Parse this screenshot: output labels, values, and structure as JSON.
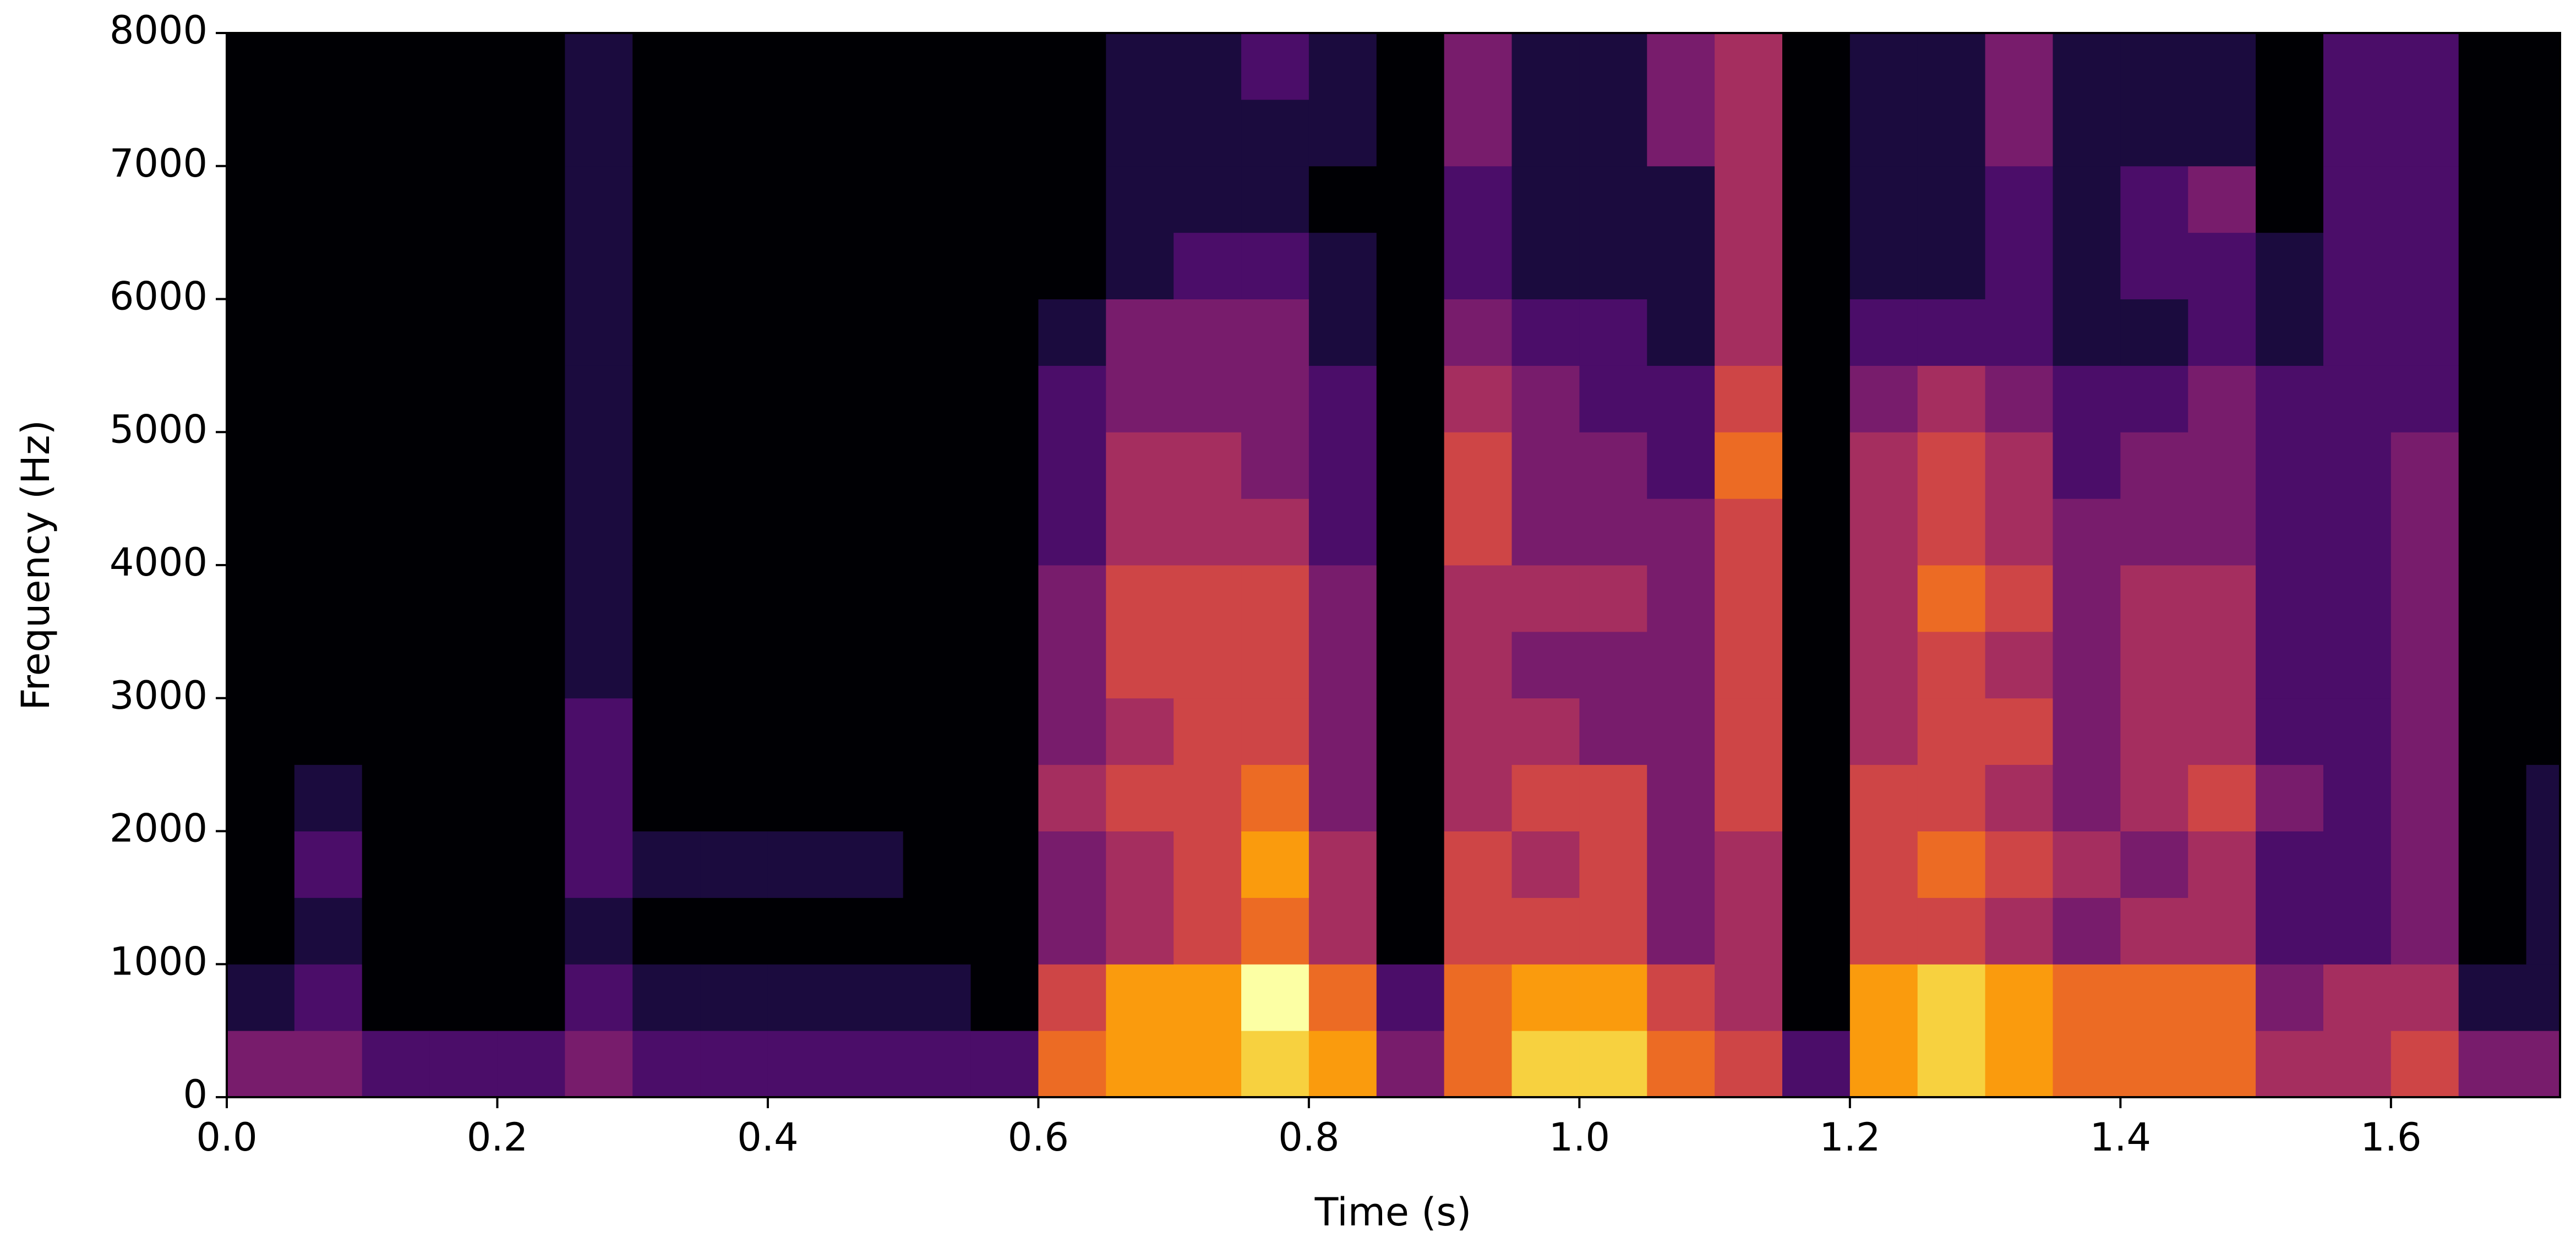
{
  "chart_data": {
    "type": "heatmap",
    "colormap": "inferno",
    "xlabel": "Time (s)",
    "ylabel": "Frequency (Hz)",
    "xlim": [
      0,
      1.725
    ],
    "ylim": [
      0,
      8000
    ],
    "xticks": [
      {
        "value": 0,
        "label": "0.0"
      },
      0.2,
      0.4,
      0.6,
      0.8,
      {
        "value": 1,
        "label": "1.0"
      },
      1.2,
      1.4,
      1.6
    ],
    "yticks": [
      0,
      1000,
      2000,
      3000,
      4000,
      5000,
      6000,
      7000,
      8000
    ],
    "x_bins": [
      0,
      0.05,
      0.1,
      0.15,
      0.2,
      0.25,
      0.3,
      0.35,
      0.4,
      0.45,
      0.5,
      0.55,
      0.6,
      0.65,
      0.7,
      0.75,
      0.8,
      0.85,
      0.9,
      0.95,
      1,
      1.05,
      1.1,
      1.15,
      1.2,
      1.25,
      1.3,
      1.35,
      1.4,
      1.45,
      1.5,
      1.55,
      1.6,
      1.65,
      1.7,
      1.75
    ],
    "y_bins": [
      0,
      500,
      1000,
      1500,
      2000,
      2500,
      3000,
      3500,
      4000,
      4500,
      5000,
      5500,
      6000,
      6500,
      7000,
      7500,
      8000
    ],
    "z": [
      [
        3,
        1,
        0,
        0,
        0,
        0,
        0,
        0,
        0,
        0,
        0,
        0,
        0,
        0,
        0,
        0
      ],
      [
        3,
        2,
        1,
        2,
        1,
        0,
        0,
        0,
        0,
        0,
        0,
        0,
        0,
        0,
        0,
        0
      ],
      [
        2,
        0,
        0,
        0,
        0,
        0,
        0,
        0,
        0,
        0,
        0,
        0,
        0,
        0,
        0,
        0
      ],
      [
        2,
        0,
        0,
        0,
        0,
        0,
        0,
        0,
        0,
        0,
        0,
        0,
        0,
        0,
        0,
        0
      ],
      [
        2,
        0,
        0,
        0,
        0,
        0,
        0,
        0,
        0,
        0,
        0,
        0,
        0,
        0,
        0,
        0
      ],
      [
        3,
        2,
        1,
        2,
        2,
        2,
        1,
        1,
        1,
        1,
        1,
        1,
        1,
        1,
        1,
        1
      ],
      [
        2,
        1,
        0,
        1,
        0,
        0,
        0,
        0,
        0,
        0,
        0,
        0,
        0,
        0,
        0,
        0
      ],
      [
        2,
        1,
        0,
        1,
        0,
        0,
        0,
        0,
        0,
        0,
        0,
        0,
        0,
        0,
        0,
        0
      ],
      [
        2,
        1,
        0,
        1,
        0,
        0,
        0,
        0,
        0,
        0,
        0,
        0,
        0,
        0,
        0,
        0
      ],
      [
        2,
        1,
        0,
        1,
        0,
        0,
        0,
        0,
        0,
        0,
        0,
        0,
        0,
        0,
        0,
        0
      ],
      [
        2,
        1,
        0,
        0,
        0,
        0,
        0,
        0,
        0,
        0,
        0,
        0,
        0,
        0,
        0,
        0
      ],
      [
        2,
        0,
        0,
        0,
        0,
        0,
        0,
        0,
        0,
        0,
        0,
        0,
        0,
        0,
        0,
        0
      ],
      [
        6,
        5,
        3,
        3,
        4,
        3,
        3,
        3,
        2,
        2,
        2,
        1,
        0,
        0,
        0,
        0
      ],
      [
        7,
        7,
        4,
        4,
        5,
        4,
        5,
        5,
        4,
        4,
        3,
        3,
        1,
        1,
        1,
        1
      ],
      [
        7,
        7,
        5,
        5,
        5,
        5,
        5,
        5,
        4,
        4,
        3,
        3,
        2,
        1,
        1,
        1
      ],
      [
        8,
        9,
        6,
        7,
        6,
        5,
        5,
        5,
        4,
        3,
        3,
        3,
        2,
        1,
        1,
        2
      ],
      [
        7,
        6,
        4,
        4,
        3,
        3,
        3,
        3,
        2,
        2,
        2,
        1,
        1,
        0,
        1,
        1
      ],
      [
        3,
        2,
        0,
        0,
        0,
        0,
        0,
        0,
        0,
        0,
        0,
        0,
        0,
        0,
        0,
        0
      ],
      [
        6,
        6,
        5,
        5,
        4,
        4,
        4,
        4,
        5,
        5,
        4,
        3,
        2,
        2,
        3,
        3
      ],
      [
        8,
        7,
        5,
        4,
        5,
        4,
        3,
        4,
        3,
        3,
        3,
        2,
        1,
        1,
        1,
        1
      ],
      [
        8,
        7,
        5,
        5,
        5,
        3,
        3,
        4,
        3,
        3,
        2,
        2,
        1,
        1,
        1,
        1
      ],
      [
        6,
        5,
        3,
        3,
        3,
        3,
        3,
        3,
        3,
        2,
        2,
        1,
        1,
        1,
        3,
        3
      ],
      [
        5,
        4,
        4,
        4,
        5,
        5,
        5,
        5,
        5,
        6,
        5,
        4,
        4,
        4,
        4,
        4
      ],
      [
        2,
        0,
        0,
        0,
        0,
        0,
        0,
        0,
        0,
        0,
        0,
        0,
        0,
        0,
        0,
        0
      ],
      [
        7,
        7,
        5,
        5,
        5,
        4,
        4,
        4,
        4,
        4,
        3,
        2,
        1,
        1,
        1,
        1
      ],
      [
        8,
        8,
        5,
        6,
        5,
        5,
        5,
        6,
        5,
        5,
        4,
        2,
        1,
        1,
        1,
        1
      ],
      [
        7,
        7,
        4,
        5,
        4,
        5,
        4,
        5,
        4,
        4,
        3,
        2,
        2,
        2,
        3,
        3
      ],
      [
        6,
        6,
        3,
        4,
        3,
        3,
        3,
        3,
        3,
        2,
        2,
        1,
        1,
        1,
        1,
        1
      ],
      [
        6,
        6,
        4,
        3,
        4,
        4,
        4,
        4,
        3,
        3,
        2,
        1,
        2,
        2,
        1,
        1
      ],
      [
        6,
        6,
        4,
        4,
        5,
        4,
        4,
        4,
        3,
        3,
        3,
        2,
        2,
        3,
        1,
        1
      ],
      [
        4,
        3,
        2,
        2,
        3,
        2,
        2,
        2,
        2,
        2,
        2,
        1,
        1,
        0,
        0,
        0
      ],
      [
        4,
        4,
        2,
        2,
        2,
        2,
        2,
        2,
        2,
        2,
        2,
        2,
        2,
        2,
        2,
        2
      ],
      [
        5,
        4,
        3,
        3,
        3,
        3,
        3,
        3,
        3,
        3,
        2,
        2,
        2,
        2,
        2,
        2
      ],
      [
        3,
        1,
        0,
        0,
        0,
        0,
        0,
        0,
        0,
        0,
        0,
        0,
        0,
        0,
        0,
        0
      ],
      [
        3,
        1,
        1,
        1,
        1,
        0,
        0,
        0,
        0,
        0,
        0,
        0,
        0,
        0,
        0,
        0
      ]
    ]
  }
}
